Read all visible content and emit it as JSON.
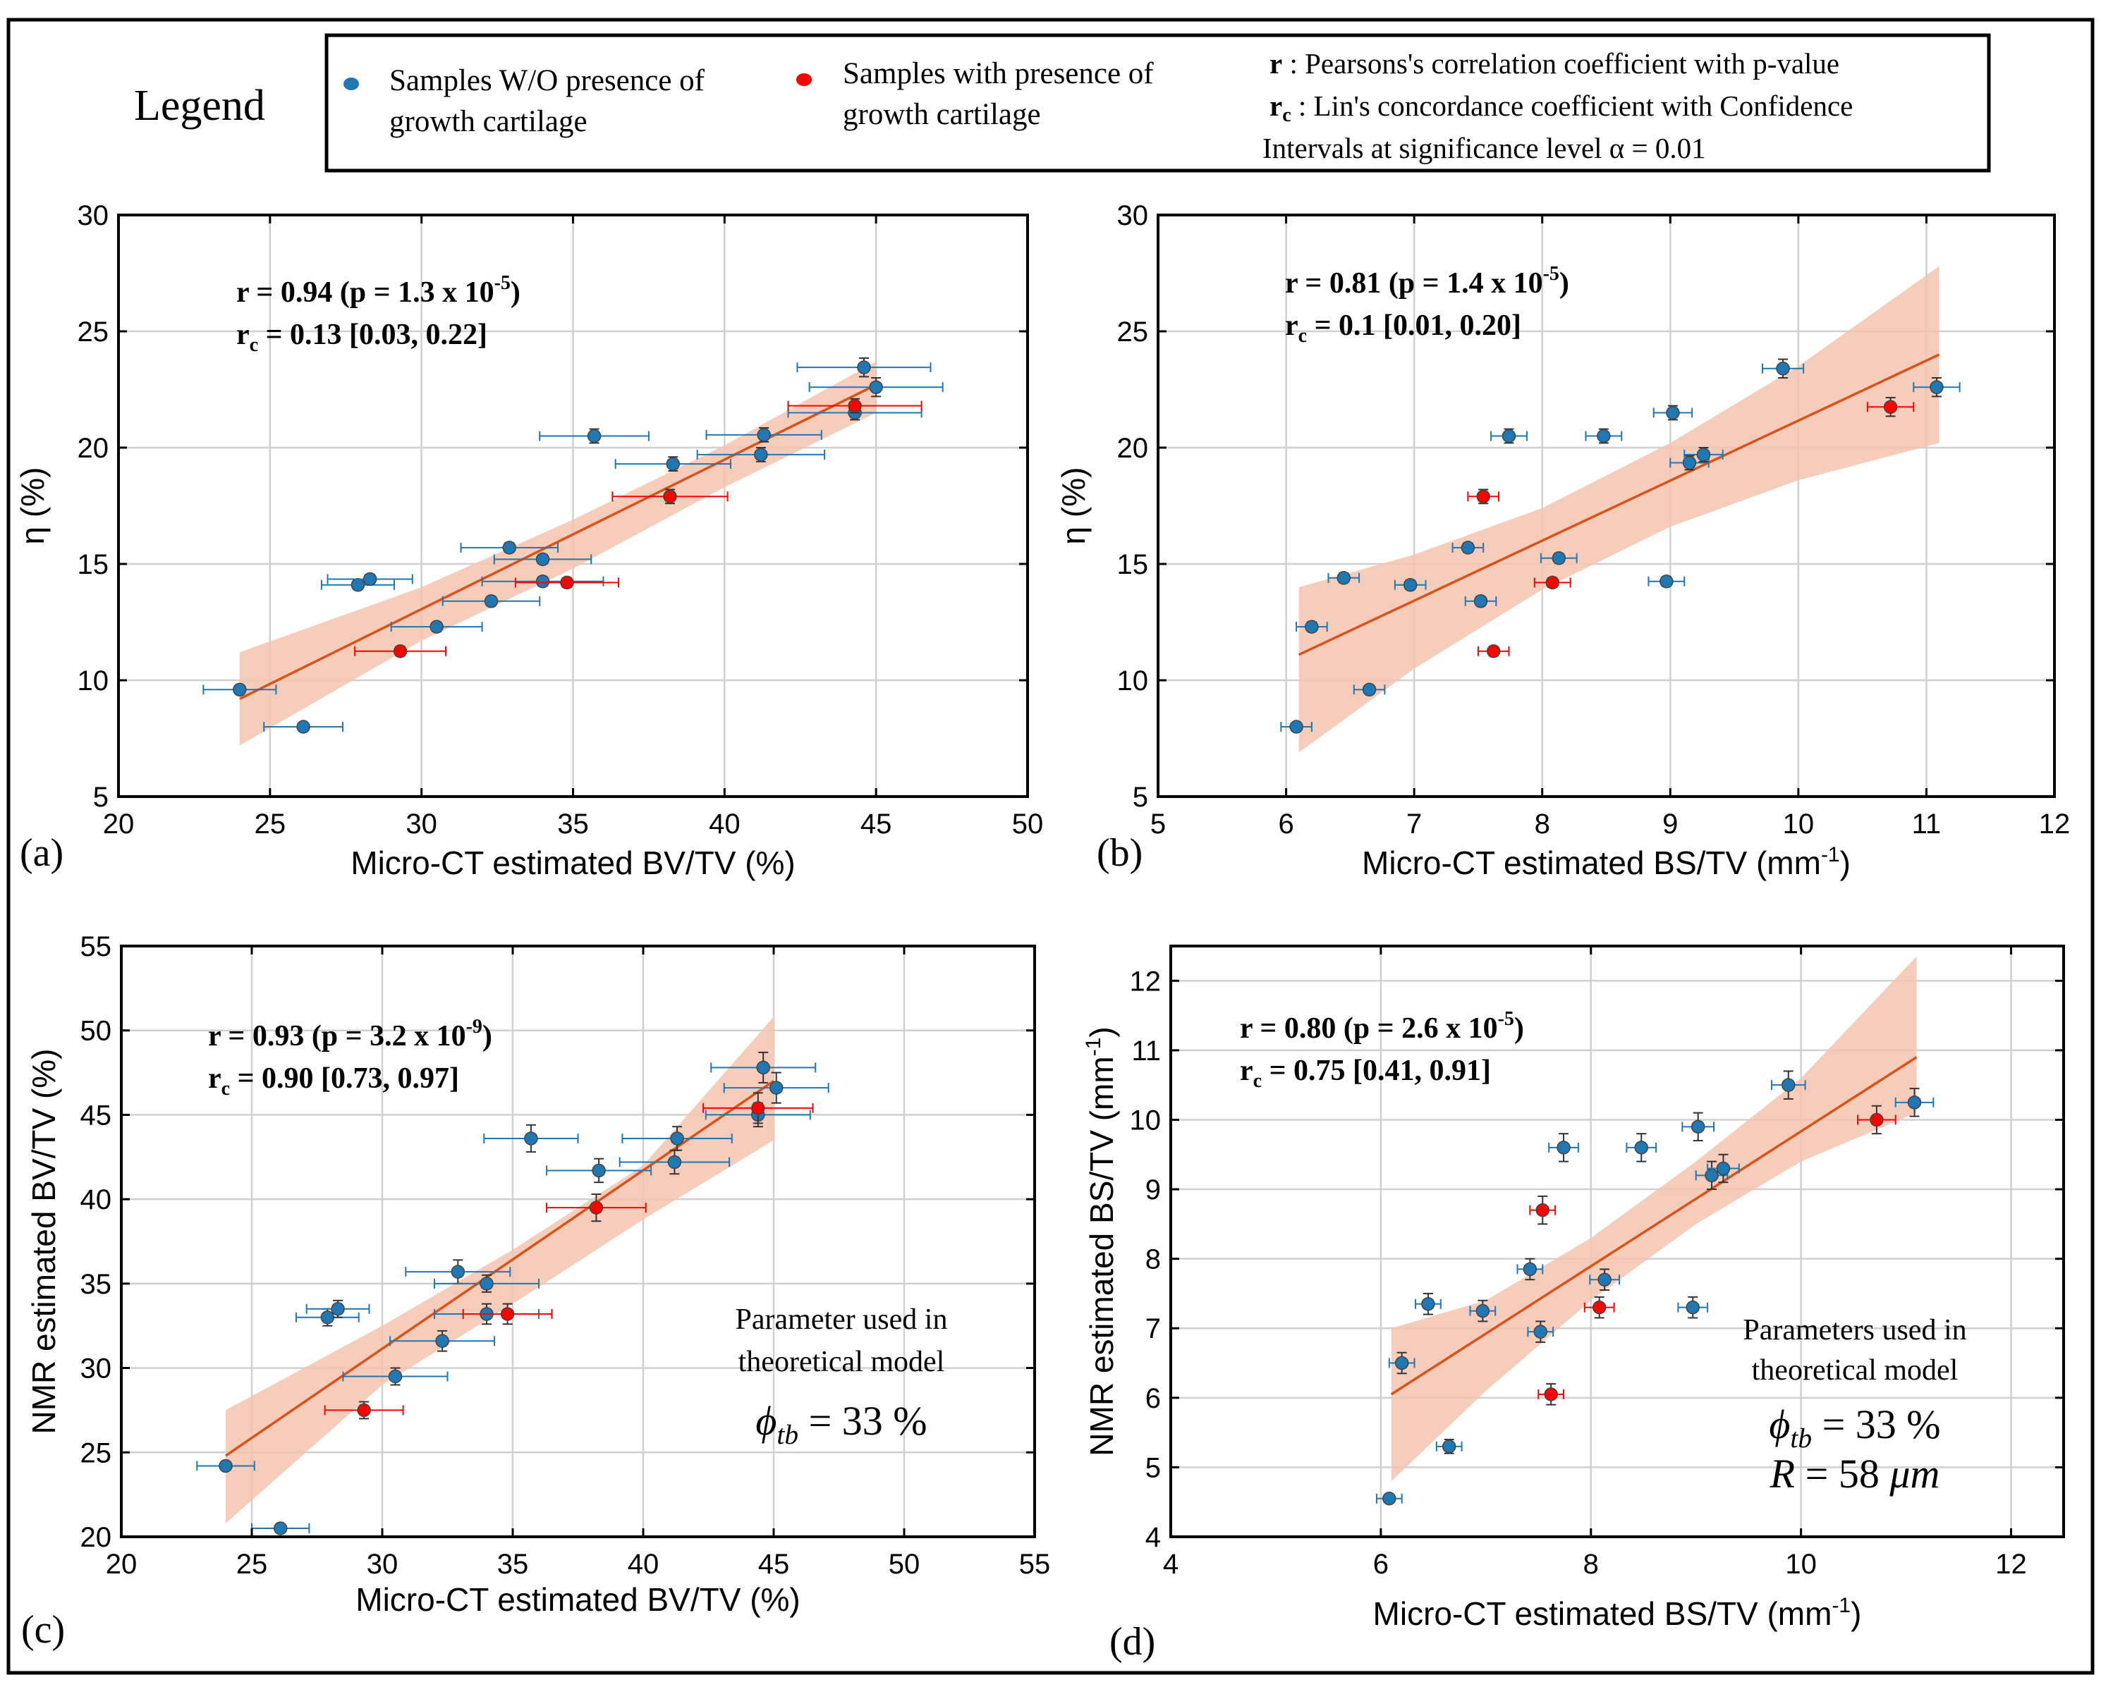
{
  "legend": {
    "title": "Legend",
    "blue_label_1": "Samples W/O presence of",
    "blue_label_2": "growth cartilage",
    "red_label_1": "Samples with presence of",
    "red_label_2": "growth cartilage",
    "note_r_sym": "r",
    "note_r_text": " : Pearsons's correlation coefficient with p-value",
    "note_rc_sym": "r",
    "note_rc_sub": "c",
    "note_rc_text": " : Lin's concordance coefficient with Confidence",
    "note_rc_text2": "Intervals at significance level α = 0.01"
  },
  "colors": {
    "blue": "#1f77b4",
    "red": "#ff0000",
    "fit": "#d95319",
    "band": "#f5c3ae",
    "grid": "#d0d0d0"
  },
  "chart_data": [
    {
      "id": "a",
      "type": "scatter",
      "panel_label": "(a)",
      "xlabel": "Micro-CT estimated BV/TV (%)",
      "ylabel": "η (%)",
      "xlim": [
        20,
        50
      ],
      "ylim": [
        5,
        30
      ],
      "xticks": [
        20,
        25,
        30,
        35,
        40,
        45,
        50
      ],
      "yticks": [
        5,
        10,
        15,
        20,
        25,
        30
      ],
      "grid": true,
      "stat1": {
        "pre": "r = 0.94 (p = 1.3 x 10",
        "exp": "-5",
        "post": ")"
      },
      "stat2": {
        "pre": "r",
        "sub": "c",
        "post": " = 0.13 [0.03, 0.22]"
      },
      "fit": {
        "x": [
          24,
          45
        ],
        "y": [
          9.2,
          22.7
        ]
      },
      "band": {
        "upper": [
          [
            24,
            11.2
          ],
          [
            30,
            14.0
          ],
          [
            35,
            16.9
          ],
          [
            40,
            20.1
          ],
          [
            45,
            23.7
          ]
        ],
        "lower": [
          [
            45,
            21.5
          ],
          [
            40,
            18.3
          ],
          [
            35,
            14.8
          ],
          [
            30,
            11.7
          ],
          [
            24,
            7.2
          ]
        ]
      },
      "series": [
        {
          "name": "Samples W/O presence of growth cartilage",
          "color": "blue",
          "points": [
            [
              24.0,
              9.6,
              1.2,
              0
            ],
            [
              26.1,
              8.0,
              1.3,
              0
            ],
            [
              27.9,
              14.1,
              1.2,
              0.2
            ],
            [
              28.3,
              14.35,
              1.4,
              0.2
            ],
            [
              30.5,
              12.3,
              1.5,
              0.2
            ],
            [
              32.3,
              13.4,
              1.6,
              0.2
            ],
            [
              32.9,
              15.7,
              1.6,
              0.2
            ],
            [
              34.0,
              15.2,
              1.6,
              0.2
            ],
            [
              34.0,
              14.25,
              2.0,
              0.2
            ],
            [
              35.7,
              20.5,
              1.8,
              0.3
            ],
            [
              38.3,
              19.3,
              1.9,
              0.3
            ],
            [
              41.2,
              19.7,
              2.1,
              0.3
            ],
            [
              41.3,
              20.55,
              1.9,
              0.3
            ],
            [
              44.3,
              21.5,
              2.2,
              0.3
            ],
            [
              44.6,
              23.45,
              2.2,
              0.4
            ],
            [
              45.0,
              22.6,
              2.2,
              0.4
            ]
          ]
        },
        {
          "name": "Samples with presence of growth cartilage",
          "color": "red",
          "points": [
            [
              29.3,
              11.25,
              1.5,
              0.2
            ],
            [
              34.8,
              14.2,
              1.7,
              0.2
            ],
            [
              38.2,
              17.9,
              1.9,
              0.3
            ],
            [
              44.3,
              21.8,
              2.2,
              0.3
            ]
          ]
        }
      ],
      "annotation": null
    },
    {
      "id": "b",
      "type": "scatter",
      "panel_label": "(b)",
      "xlabel": "Micro-CT estimated BS/TV (mm",
      "xlabel_sup": "-1",
      "xlabel_post": ")",
      "ylabel": "η (%)",
      "xlim": [
        5,
        12
      ],
      "ylim": [
        5,
        30
      ],
      "xticks": [
        5,
        6,
        7,
        8,
        9,
        10,
        11,
        12
      ],
      "yticks": [
        5,
        10,
        15,
        20,
        25,
        30
      ],
      "grid": true,
      "stat1": {
        "pre": "r = 0.81 (p = 1.4 x 10",
        "exp": "-5",
        "post": ")"
      },
      "stat2": {
        "pre": "r",
        "sub": "c",
        "post": " = 0.1 [0.01, 0.20]"
      },
      "fit": {
        "x": [
          6.1,
          11.1
        ],
        "y": [
          11.1,
          24.0
        ]
      },
      "band": {
        "upper": [
          [
            6.1,
            14.0
          ],
          [
            7,
            15.4
          ],
          [
            8,
            17.4
          ],
          [
            9,
            20.2
          ],
          [
            10,
            23.5
          ],
          [
            11.1,
            27.8
          ]
        ],
        "lower": [
          [
            11.1,
            20.2
          ],
          [
            10,
            18.6
          ],
          [
            9,
            16.6
          ],
          [
            8,
            13.9
          ],
          [
            7,
            10.5
          ],
          [
            6.1,
            6.9
          ]
        ]
      },
      "series": [
        {
          "name": "Samples W/O presence of growth cartilage",
          "color": "blue",
          "points": [
            [
              6.08,
              8.0,
              0.12,
              0
            ],
            [
              6.2,
              12.3,
              0.12,
              0.2
            ],
            [
              6.45,
              14.4,
              0.12,
              0.2
            ],
            [
              6.65,
              9.6,
              0.12,
              0
            ],
            [
              6.97,
              14.1,
              0.12,
              0.2
            ],
            [
              7.42,
              15.7,
              0.12,
              0.2
            ],
            [
              7.52,
              13.4,
              0.12,
              0.2
            ],
            [
              7.74,
              20.5,
              0.14,
              0.3
            ],
            [
              8.13,
              15.25,
              0.14,
              0.2
            ],
            [
              8.48,
              20.5,
              0.14,
              0.3
            ],
            [
              8.97,
              14.25,
              0.14,
              0.2
            ],
            [
              9.02,
              21.5,
              0.15,
              0.3
            ],
            [
              9.15,
              19.35,
              0.15,
              0.3
            ],
            [
              9.26,
              19.7,
              0.15,
              0.3
            ],
            [
              9.88,
              23.4,
              0.16,
              0.4
            ],
            [
              11.08,
              22.6,
              0.18,
              0.4
            ]
          ]
        },
        {
          "name": "Samples with presence of growth cartilage",
          "color": "red",
          "points": [
            [
              7.54,
              17.9,
              0.12,
              0.3
            ],
            [
              7.62,
              11.25,
              0.12,
              0.2
            ],
            [
              8.08,
              14.2,
              0.14,
              0.2
            ],
            [
              10.72,
              21.75,
              0.18,
              0.4
            ]
          ]
        }
      ],
      "annotation": null
    },
    {
      "id": "c",
      "type": "scatter",
      "panel_label": "(c)",
      "xlabel": "Micro-CT estimated BV/TV (%)",
      "ylabel": "NMR estimated BV/TV (%)",
      "xlim": [
        20,
        55
      ],
      "ylim": [
        20,
        55
      ],
      "xticks": [
        20,
        25,
        30,
        35,
        40,
        45,
        50,
        55
      ],
      "yticks": [
        20,
        25,
        30,
        35,
        40,
        45,
        50,
        55
      ],
      "grid": true,
      "stat1": {
        "pre": "r = 0.93 (p = 3.2 x 10",
        "exp": "-9",
        "post": ")"
      },
      "stat2": {
        "pre": "r",
        "sub": "c",
        "post": " = 0.90 [0.73, 0.97]"
      },
      "fit": {
        "x": [
          24,
          45
        ],
        "y": [
          24.8,
          47.0
        ]
      },
      "band": {
        "upper": [
          [
            24,
            27.5
          ],
          [
            30,
            32.5
          ],
          [
            35,
            37.0
          ],
          [
            40,
            42.0
          ],
          [
            45,
            50.8
          ]
        ],
        "lower": [
          [
            45,
            43.5
          ],
          [
            40,
            38.8
          ],
          [
            35,
            33.8
          ],
          [
            30,
            29.0
          ],
          [
            24,
            20.8
          ]
        ]
      },
      "series": [
        {
          "name": "Samples W/O presence of growth cartilage",
          "color": "blue",
          "points": [
            [
              24.0,
              24.2,
              1.1,
              0
            ],
            [
              26.1,
              20.5,
              1.1,
              0
            ],
            [
              27.9,
              33.0,
              1.2,
              0.5
            ],
            [
              28.3,
              33.5,
              1.2,
              0.5
            ],
            [
              30.5,
              29.5,
              2.0,
              0.5
            ],
            [
              32.3,
              31.6,
              2.0,
              0.6
            ],
            [
              32.9,
              35.7,
              2.0,
              0.7
            ],
            [
              34.0,
              35.0,
              2.0,
              0.5
            ],
            [
              34.0,
              33.2,
              2.0,
              0.6
            ],
            [
              35.7,
              43.6,
              1.8,
              0.8
            ],
            [
              38.3,
              41.7,
              2.0,
              0.7
            ],
            [
              41.2,
              42.2,
              2.1,
              0.7
            ],
            [
              41.3,
              43.6,
              2.1,
              0.7
            ],
            [
              44.4,
              45.0,
              2.0,
              0.7
            ],
            [
              44.6,
              47.8,
              2.0,
              0.9
            ],
            [
              45.1,
              46.6,
              2.0,
              0.9
            ]
          ]
        },
        {
          "name": "Samples with presence of growth cartilage",
          "color": "red",
          "points": [
            [
              29.3,
              27.5,
              1.5,
              0.5
            ],
            [
              34.8,
              33.2,
              1.7,
              0.6
            ],
            [
              38.2,
              39.5,
              1.9,
              0.8
            ],
            [
              44.4,
              45.4,
              2.1,
              0.9
            ]
          ]
        }
      ],
      "annotation": {
        "line1": "Parameter used in",
        "line2": "theoretical model",
        "formula1": "ϕ_tb = 33 %",
        "formula2": ""
      }
    },
    {
      "id": "d",
      "type": "scatter",
      "panel_label": "(d)",
      "xlabel": "Micro-CT estimated BS/TV (mm",
      "xlabel_sup": "-1",
      "xlabel_post": ")",
      "ylabel": "NMR estimated BS/TV (mm",
      "ylabel_sup": "-1",
      "ylabel_post": ")",
      "xlim": [
        4,
        12.5
      ],
      "ylim": [
        4,
        12.5
      ],
      "xticks": [
        4,
        6,
        8,
        10,
        12
      ],
      "yticks": [
        4,
        5,
        6,
        7,
        8,
        9,
        10,
        11,
        12
      ],
      "grid": true,
      "stat1": {
        "pre": "r = 0.80 (p = 2.6 x 10",
        "exp": "-5",
        "post": ")"
      },
      "stat2": {
        "pre": "r",
        "sub": "c",
        "post": " = 0.75 [0.41, 0.91]"
      },
      "fit": {
        "x": [
          6.1,
          11.1
        ],
        "y": [
          6.05,
          10.9
        ]
      },
      "band": {
        "upper": [
          [
            6.1,
            7.0
          ],
          [
            7,
            7.4
          ],
          [
            8,
            8.3
          ],
          [
            9,
            9.4
          ],
          [
            10,
            10.6
          ],
          [
            11.1,
            12.35
          ]
        ],
        "lower": [
          [
            11.1,
            10.1
          ],
          [
            10,
            9.4
          ],
          [
            9,
            8.5
          ],
          [
            8,
            7.4
          ],
          [
            7,
            6.1
          ],
          [
            6.1,
            4.8
          ]
        ]
      },
      "series": [
        {
          "name": "Samples W/O presence of growth cartilage",
          "color": "blue",
          "points": [
            [
              6.08,
              4.55,
              0.12,
              0
            ],
            [
              6.2,
              6.5,
              0.12,
              0.15
            ],
            [
              6.45,
              7.35,
              0.12,
              0.15
            ],
            [
              6.65,
              5.3,
              0.12,
              0.1
            ],
            [
              6.97,
              7.25,
              0.12,
              0.15
            ],
            [
              7.42,
              7.85,
              0.12,
              0.15
            ],
            [
              7.52,
              6.95,
              0.12,
              0.15
            ],
            [
              7.74,
              9.6,
              0.14,
              0.2
            ],
            [
              8.13,
              7.7,
              0.14,
              0.15
            ],
            [
              8.48,
              9.6,
              0.14,
              0.2
            ],
            [
              8.97,
              7.3,
              0.14,
              0.15
            ],
            [
              9.02,
              9.9,
              0.15,
              0.2
            ],
            [
              9.15,
              9.2,
              0.15,
              0.2
            ],
            [
              9.26,
              9.3,
              0.15,
              0.2
            ],
            [
              9.88,
              10.5,
              0.16,
              0.2
            ],
            [
              11.08,
              10.25,
              0.18,
              0.2
            ]
          ]
        },
        {
          "name": "Samples with presence of growth cartilage",
          "color": "red",
          "points": [
            [
              7.54,
              8.7,
              0.12,
              0.2
            ],
            [
              7.62,
              6.05,
              0.12,
              0.15
            ],
            [
              8.08,
              7.3,
              0.14,
              0.15
            ],
            [
              10.72,
              10.0,
              0.18,
              0.2
            ]
          ]
        }
      ],
      "annotation": {
        "line1": "Parameters used in",
        "line2": "theoretical model",
        "formula1": "ϕ_tb = 33 %",
        "formula2": "R = 58 μm"
      }
    }
  ]
}
